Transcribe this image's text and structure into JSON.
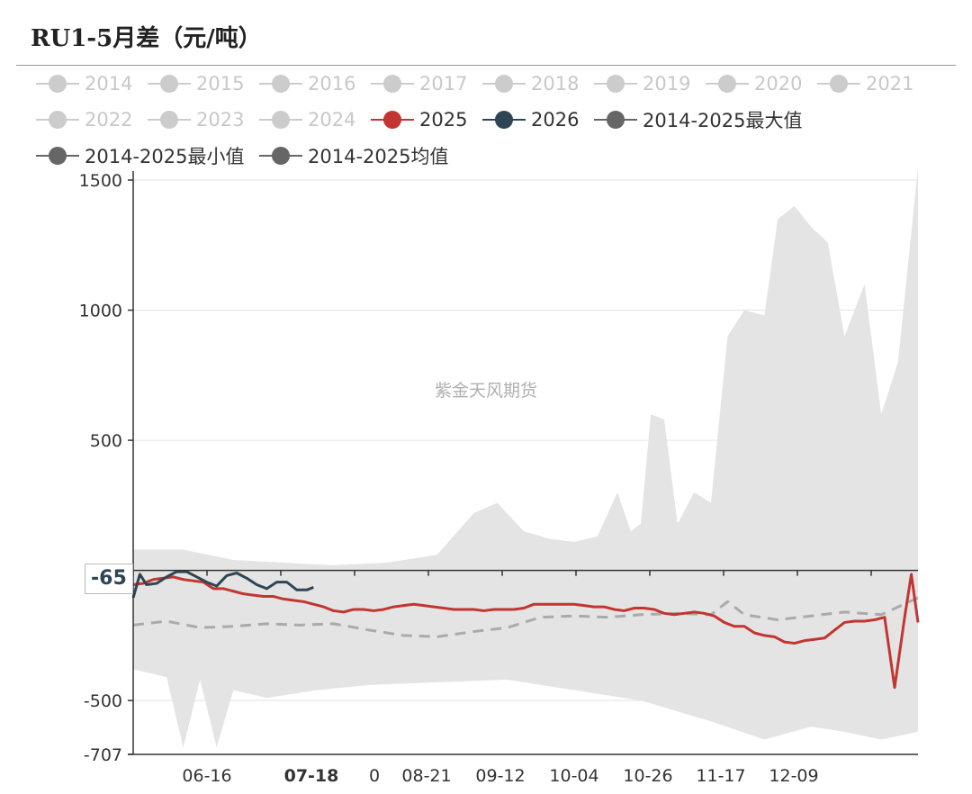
{
  "title": "RU1-5月差（元/吨）",
  "watermark": "紫金天风期货",
  "pointer_label": "-65",
  "colors": {
    "inactive": "#cccccc",
    "s2025": "#c23531",
    "s2026": "#2f4554",
    "stat": "#666666",
    "band": "#e4e4e4",
    "mean_line": "#aaaaaa"
  },
  "legend": [
    {
      "label": "2014",
      "color": "#cccccc",
      "active": false
    },
    {
      "label": "2015",
      "color": "#cccccc",
      "active": false
    },
    {
      "label": "2016",
      "color": "#cccccc",
      "active": false
    },
    {
      "label": "2017",
      "color": "#cccccc",
      "active": false
    },
    {
      "label": "2018",
      "color": "#cccccc",
      "active": false
    },
    {
      "label": "2019",
      "color": "#cccccc",
      "active": false
    },
    {
      "label": "2020",
      "color": "#cccccc",
      "active": false
    },
    {
      "label": "2021",
      "color": "#cccccc",
      "active": false
    },
    {
      "label": "2022",
      "color": "#cccccc",
      "active": false
    },
    {
      "label": "2023",
      "color": "#cccccc",
      "active": false
    },
    {
      "label": "2024",
      "color": "#cccccc",
      "active": false
    },
    {
      "label": "2025",
      "color": "#c23531",
      "active": true
    },
    {
      "label": "2026",
      "color": "#2f4554",
      "active": true
    },
    {
      "label": "2014-2025最大值",
      "color": "#666666",
      "active": true
    },
    {
      "label": "2014-2025最小值",
      "color": "#666666",
      "active": true
    },
    {
      "label": "2014-2025均值",
      "color": "#666666",
      "active": true
    }
  ],
  "chart_data": {
    "type": "line",
    "y_ticks": [
      "1500",
      "1000",
      "500",
      "-500",
      "-707"
    ],
    "x_ticks": [
      "06-16",
      "07-18",
      "0",
      "08-21",
      "09-12",
      "10-04",
      "10-26",
      "11-17",
      "12-09"
    ],
    "x_highlight": "07-18",
    "ylim": [
      -707,
      1500
    ],
    "x_domain": [
      "05-26",
      "01-16"
    ],
    "grid": true,
    "series": [
      {
        "name": "2025",
        "x": [
          "05-26",
          "05-29",
          "06-01",
          "06-04",
          "06-07",
          "06-10",
          "06-13",
          "06-16",
          "06-19",
          "06-22",
          "06-25",
          "06-28",
          "07-01",
          "07-04",
          "07-07",
          "07-10",
          "07-13",
          "07-16",
          "07-19",
          "07-22",
          "07-25",
          "07-28",
          "07-31",
          "08-03",
          "08-06",
          "08-09",
          "08-12",
          "08-15",
          "08-18",
          "08-21",
          "08-24",
          "08-27",
          "08-30",
          "09-02",
          "09-05",
          "09-08",
          "09-11",
          "09-14",
          "09-17",
          "09-20",
          "09-23",
          "09-26",
          "09-29",
          "10-02",
          "10-05",
          "10-08",
          "10-11",
          "10-14",
          "10-17",
          "10-20",
          "10-23",
          "10-26",
          "10-29",
          "11-01",
          "11-04",
          "11-07",
          "11-10",
          "11-13",
          "11-16",
          "11-19",
          "11-22",
          "11-25",
          "11-28",
          "12-01",
          "12-04",
          "12-07",
          "12-10",
          "12-13",
          "12-16",
          "12-19",
          "12-22",
          "12-25",
          "12-28",
          "12-31",
          "01-03",
          "01-06",
          "01-09",
          "01-12",
          "01-14",
          "01-16"
        ],
        "values": [
          -55,
          -50,
          -35,
          -30,
          -25,
          -35,
          -40,
          -45,
          -70,
          -70,
          -80,
          -90,
          -95,
          -100,
          -100,
          -110,
          -115,
          -120,
          -130,
          -140,
          -155,
          -160,
          -150,
          -150,
          -155,
          -150,
          -140,
          -135,
          -130,
          -135,
          -140,
          -145,
          -150,
          -150,
          -150,
          -155,
          -150,
          -150,
          -150,
          -145,
          -130,
          -130,
          -130,
          -130,
          -130,
          -135,
          -140,
          -140,
          -150,
          -155,
          -145,
          -145,
          -150,
          -165,
          -170,
          -165,
          -160,
          -165,
          -175,
          -200,
          -215,
          -215,
          -240,
          -250,
          -255,
          -275,
          -280,
          -270,
          -265,
          -260,
          -230,
          -200,
          -195,
          -195,
          -190,
          -180,
          -450,
          -180,
          -15,
          -200
        ]
      },
      {
        "name": "2026",
        "x": [
          "05-26",
          "05-28",
          "05-30",
          "06-02",
          "06-05",
          "06-08",
          "06-11",
          "06-14",
          "06-17",
          "06-20",
          "06-23",
          "06-26",
          "06-29",
          "07-02",
          "07-05",
          "07-08",
          "07-11",
          "07-14",
          "07-17",
          "07-19"
        ],
        "values": [
          -105,
          -15,
          -55,
          -50,
          -25,
          -5,
          -5,
          -25,
          -45,
          -60,
          -20,
          -10,
          -30,
          -55,
          -70,
          -45,
          -45,
          -75,
          -75,
          -65
        ]
      },
      {
        "name": "2014-2025最大值",
        "x": [
          "05-26",
          "06-10",
          "06-25",
          "07-10",
          "07-25",
          "08-10",
          "08-25",
          "09-05",
          "09-12",
          "09-20",
          "09-28",
          "10-05",
          "10-12",
          "10-18",
          "10-22",
          "10-25",
          "10-28",
          "11-01",
          "11-05",
          "11-10",
          "11-15",
          "11-20",
          "11-25",
          "12-01",
          "12-05",
          "12-10",
          "12-15",
          "12-20",
          "12-25",
          "12-31",
          "01-05",
          "01-10",
          "01-16"
        ],
        "values": [
          80,
          80,
          40,
          30,
          20,
          30,
          60,
          220,
          260,
          150,
          120,
          110,
          130,
          300,
          150,
          180,
          600,
          580,
          180,
          300,
          260,
          900,
          1000,
          980,
          1350,
          1400,
          1320,
          1260,
          900,
          1100,
          600,
          800,
          1550
        ]
      },
      {
        "name": "2014-2025最小值",
        "x": [
          "05-26",
          "06-05",
          "06-10",
          "06-15",
          "06-20",
          "06-25",
          "07-05",
          "07-20",
          "08-05",
          "08-25",
          "09-15",
          "10-05",
          "10-25",
          "11-15",
          "12-01",
          "12-15",
          "12-25",
          "01-05",
          "01-16"
        ],
        "values": [
          -380,
          -410,
          -680,
          -420,
          -680,
          -460,
          -490,
          -460,
          -440,
          -430,
          -420,
          -460,
          -500,
          -580,
          -650,
          -600,
          -620,
          -650,
          -620
        ]
      },
      {
        "name": "2014-2025均值",
        "x": [
          "05-26",
          "06-05",
          "06-15",
          "06-25",
          "07-05",
          "07-15",
          "07-25",
          "08-05",
          "08-15",
          "08-25",
          "09-05",
          "09-15",
          "09-25",
          "10-05",
          "10-15",
          "10-25",
          "11-05",
          "11-15",
          "11-20",
          "11-25",
          "12-05",
          "12-15",
          "12-25",
          "01-05",
          "01-16"
        ],
        "values": [
          -210,
          -195,
          -220,
          -215,
          -205,
          -210,
          -205,
          -230,
          -250,
          -255,
          -235,
          -220,
          -180,
          -175,
          -180,
          -170,
          -165,
          -170,
          -120,
          -170,
          -190,
          -175,
          -160,
          -170,
          -105
        ]
      }
    ]
  }
}
